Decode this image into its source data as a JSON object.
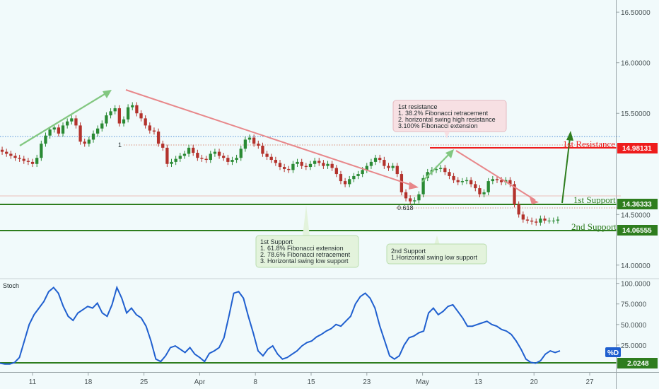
{
  "colors": {
    "background": "#f1fafb",
    "candle_up": "#2a8a34",
    "candle_down": "#b3322c",
    "resistance": "#ee1c1c",
    "support": "#2e7d1e",
    "down_arrow": "#e8878a",
    "up_arrow": "#82c780",
    "fib_dotted": "#d98f7a",
    "blue_dotted": "#4f8fd9",
    "stoch_line": "#1f5fcf",
    "axis_text": "#4a5456",
    "resistance_box": "#f7e0e3",
    "support_box": "#e3f3dc"
  },
  "price_axis": {
    "ticks": [
      "16.50000",
      "16.00000",
      "15.50000",
      "14.50000",
      "14.00000"
    ],
    "tick_values": [
      16.5,
      16.0,
      15.5,
      14.5,
      14.0
    ],
    "range": [
      13.88,
      16.62
    ]
  },
  "stoch_axis": {
    "ticks": [
      "100.0000",
      "75.0000",
      "50.0000",
      "25.0000"
    ],
    "tick_values": [
      100,
      75,
      50,
      25
    ],
    "range": [
      -6,
      104
    ]
  },
  "time_axis": {
    "labels": [
      "11",
      "18",
      "25",
      "Apr",
      "8",
      "15",
      "23",
      "May",
      "13",
      "20",
      "27"
    ]
  },
  "levels": {
    "resistance_1": {
      "value": 14.98131,
      "label": "1st Resistance",
      "tag": "14.98131"
    },
    "support_1": {
      "value": 14.36333,
      "label": "1st Support",
      "tag": "14.36333"
    },
    "support_2": {
      "value": 14.06555,
      "label": "2nd Support",
      "tag": "14.06555"
    },
    "stoch_level": {
      "value": 2.0248,
      "tag": "2.0248"
    }
  },
  "fib_markers": {
    "one": "1",
    "ratio": "0.618"
  },
  "annotations": {
    "resistance_box": [
      "1st resistance",
      "1. 38.2% Fibonacci retracement",
      "2. horizontal swing high resistance",
      "3.100% Fibonacci extension"
    ],
    "support1_box": [
      "1st Support",
      "1. 61.8% Fibonacci extension",
      "2. 78.6% Fibonacci retracement",
      "3. Horizontal swing low support"
    ],
    "support2_box": [
      "2nd Support",
      "1.Horizontal swing low support"
    ]
  },
  "indicator": {
    "name": "Stoch",
    "badge": "%D"
  },
  "chart_data": {
    "type": "line",
    "title": "",
    "series": [
      {
        "name": "",
        "values": [
          15.12,
          15.1,
          15.08,
          15.06,
          15.05,
          15.03,
          15.02,
          15.0,
          15.06,
          15.2,
          15.28,
          15.34,
          15.36,
          15.3,
          15.38,
          15.42,
          15.45,
          15.38,
          15.22,
          15.2,
          15.24,
          15.3,
          15.35,
          15.4,
          15.48,
          15.52,
          15.55,
          15.4,
          15.44,
          15.56,
          15.58,
          15.5,
          15.45,
          15.38,
          15.33,
          15.32,
          15.2,
          15.16,
          15.0,
          15.02,
          15.05,
          15.08,
          15.1,
          15.16,
          15.11,
          15.06,
          15.05,
          15.04,
          15.1,
          15.12,
          15.08,
          15.06,
          15.02,
          15.04,
          15.06,
          15.15,
          15.24,
          15.26,
          15.2,
          15.18,
          15.1,
          15.07,
          15.04,
          15.01,
          14.97,
          14.95,
          14.94,
          15.0,
          15.02,
          14.98,
          14.97,
          15.0,
          15.03,
          15.01,
          14.98,
          15.0,
          14.96,
          14.9,
          14.83,
          14.8,
          14.85,
          14.88,
          14.9,
          14.94,
          14.98,
          15.02,
          15.06,
          15.04,
          14.98,
          14.96,
          14.98,
          14.9,
          14.72,
          14.66,
          14.63,
          14.64,
          14.7,
          14.86,
          14.92,
          14.94,
          14.95,
          14.96,
          14.92,
          14.88,
          14.84,
          14.82,
          14.83,
          14.84,
          14.8,
          14.76,
          14.7,
          14.72,
          14.83,
          14.85,
          14.84,
          14.82,
          14.84,
          14.8,
          14.6,
          14.5,
          14.45,
          14.44,
          14.43,
          14.42,
          14.46,
          14.44,
          14.44,
          14.44,
          14.45
        ]
      },
      {
        "name": "Stoch",
        "values": [
          3,
          2,
          2,
          4,
          10,
          30,
          50,
          62,
          70,
          78,
          90,
          95,
          88,
          72,
          60,
          55,
          64,
          68,
          72,
          70,
          76,
          64,
          60,
          74,
          95,
          82,
          64,
          70,
          62,
          58,
          48,
          30,
          8,
          5,
          12,
          22,
          24,
          20,
          16,
          22,
          14,
          10,
          5,
          15,
          18,
          22,
          34,
          60,
          88,
          90,
          82,
          60,
          40,
          18,
          12,
          20,
          24,
          14,
          8,
          10,
          14,
          18,
          24,
          28,
          30,
          35,
          38,
          42,
          45,
          50,
          48,
          54,
          60,
          75,
          84,
          88,
          82,
          70,
          48,
          30,
          12,
          8,
          12,
          25,
          34,
          36,
          40,
          42,
          64,
          70,
          62,
          66,
          72,
          74,
          66,
          58,
          48,
          48,
          50,
          52,
          54,
          50,
          48,
          44,
          42,
          38,
          30,
          20,
          8,
          4,
          3,
          6,
          14,
          18,
          16,
          18
        ]
      }
    ],
    "xlabel": "",
    "ylabel": "",
    "grid": false,
    "legend": "none"
  }
}
